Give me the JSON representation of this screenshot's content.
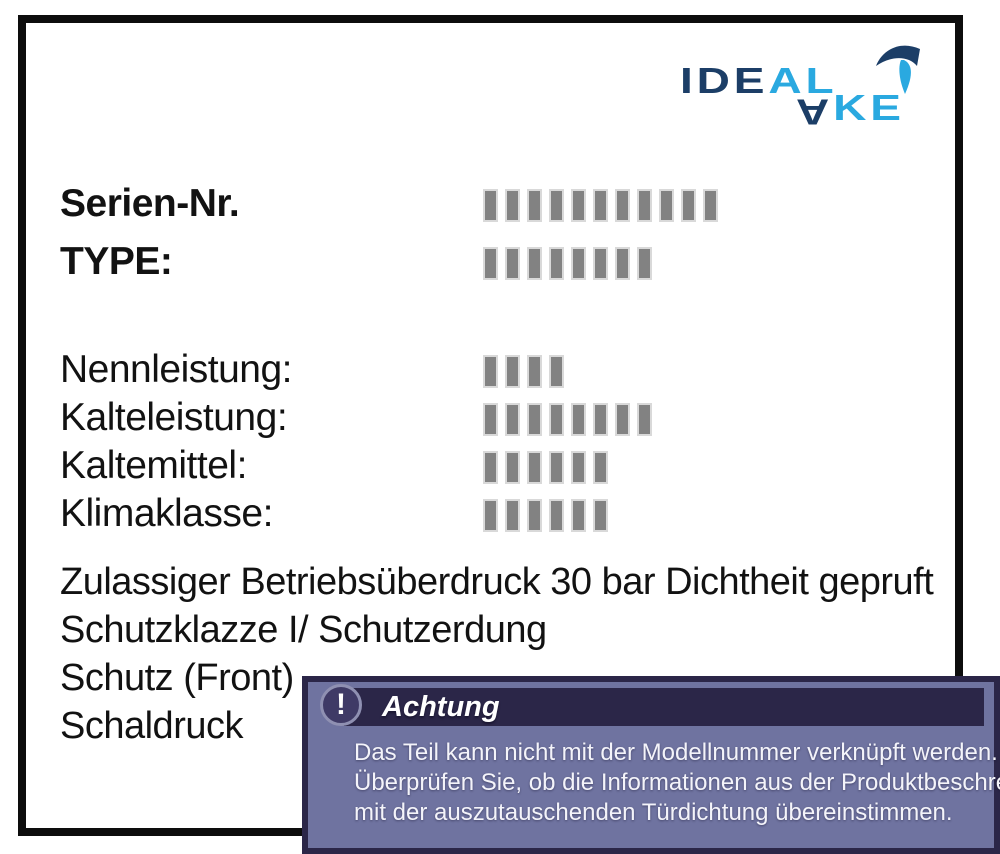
{
  "colors": {
    "logo_navy": "#1c3e67",
    "logo_cyan": "#2aa9e0",
    "plate_border": "#0d0d0d",
    "text": "#121212",
    "block_fill": "#828282",
    "block_edge": "#d9d9d9",
    "warning_bg": "#6f73a0",
    "warning_dark": "#2b2648",
    "warning_text": "#f4f4fa"
  },
  "logo": {
    "top_dark": "IDE",
    "top_light": "AL",
    "bottom_dark": "A",
    "bottom_light": "KE"
  },
  "nameplate": {
    "serial": {
      "label": "Serien-Nr.",
      "blocks": 11
    },
    "type": {
      "label": "TYPE:",
      "blocks": 8
    },
    "fields": [
      {
        "label": "Nennleistung:",
        "blocks": 4
      },
      {
        "label": "Kalteleistung:",
        "blocks": 8
      },
      {
        "label": "Kaltemittel:",
        "blocks": 6
      },
      {
        "label": "Klimaklasse:",
        "blocks": 6
      }
    ],
    "notes": [
      "Zulassiger Betriebsüberdruck 30 bar Dichtheit gepruft",
      "Schutzklazze I/ Schutzerdung",
      "Schutz (Front)",
      "Schaldruck"
    ]
  },
  "warning": {
    "icon": "!",
    "title": "Achtung",
    "lines": [
      "Das Teil kann nicht mit der Modellnummer verknüpft werden.",
      "Überprüfen Sie, ob die Informationen aus der Produktbeschreibung",
      "mit der auszutauschenden Türdichtung übereinstimmen."
    ]
  }
}
